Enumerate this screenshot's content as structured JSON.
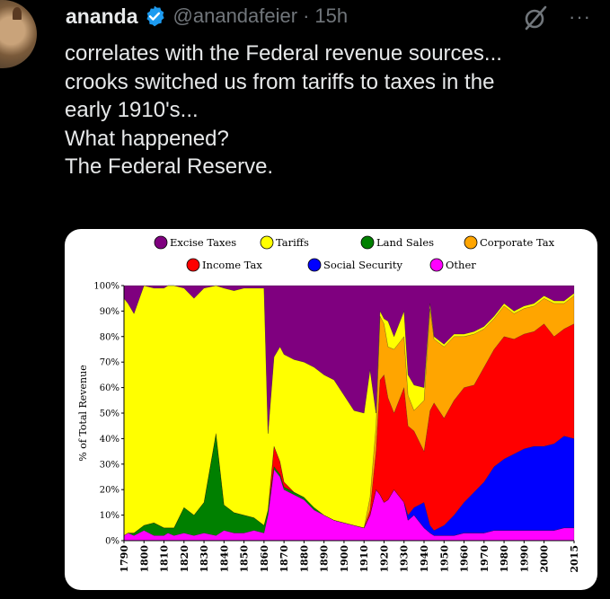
{
  "post": {
    "author_name": "ananda",
    "handle": "@anandafeier",
    "separator": "·",
    "time": "15h",
    "more": "···",
    "text_lines": [
      "correlates with the Federal revenue sources...",
      "crooks switched us from tariffs to taxes in the",
      "early 1910's...",
      "What happened?",
      "The Federal Reserve."
    ]
  },
  "icons": {
    "verified": "verified-badge-icon",
    "grok": "grok-icon",
    "more": "more-icon"
  },
  "colors": {
    "background": "#000000",
    "text": "#e7e9ea",
    "muted": "#71767b",
    "verified": "#1d9bf0"
  },
  "chart_data": {
    "type": "area",
    "stacked": true,
    "ylabel": "% of Total Revenue",
    "xlabel": "",
    "ylim": [
      0,
      100
    ],
    "xlim": [
      1790,
      2015
    ],
    "y_ticks": [
      "0%",
      "10%",
      "20%",
      "30%",
      "40%",
      "50%",
      "60%",
      "70%",
      "80%",
      "90%",
      "100%"
    ],
    "x_ticks": [
      "1790",
      "1800",
      "1810",
      "1820",
      "1830",
      "1840",
      "1850",
      "1860",
      "1870",
      "1880",
      "1890",
      "1900",
      "1910",
      "1920",
      "1930",
      "1940",
      "1950",
      "1960",
      "1970",
      "1980",
      "1990",
      "2000",
      "2015"
    ],
    "legend_placement": "top",
    "legend": [
      {
        "name": "Excise Taxes",
        "color": "#7f007f"
      },
      {
        "name": "Tariffs",
        "color": "#ffff00"
      },
      {
        "name": "Land Sales",
        "color": "#008000"
      },
      {
        "name": "Corporate Tax",
        "color": "#ffa500"
      },
      {
        "name": "Income Tax",
        "color": "#ff0000"
      },
      {
        "name": "Social Security",
        "color": "#0000ff"
      },
      {
        "name": "Other",
        "color": "#ff00ff"
      }
    ],
    "x": [
      1790,
      1792,
      1795,
      1800,
      1805,
      1810,
      1812,
      1815,
      1820,
      1825,
      1830,
      1836,
      1840,
      1845,
      1850,
      1855,
      1860,
      1862,
      1865,
      1868,
      1870,
      1875,
      1880,
      1885,
      1890,
      1895,
      1900,
      1905,
      1910,
      1913,
      1916,
      1918,
      1920,
      1922,
      1925,
      1930,
      1932,
      1935,
      1940,
      1943,
      1945,
      1950,
      1955,
      1960,
      1965,
      1970,
      1975,
      1980,
      1985,
      1990,
      1995,
      2000,
      2005,
      2010,
      2015
    ],
    "series": [
      {
        "name": "Other",
        "values": [
          2,
          3,
          2,
          4,
          2,
          2,
          3,
          2,
          3,
          2,
          3,
          2,
          4,
          3,
          3,
          4,
          3,
          10,
          28,
          25,
          20,
          18,
          16,
          12,
          10,
          8,
          7,
          6,
          5,
          10,
          20,
          18,
          15,
          16,
          20,
          15,
          8,
          10,
          5,
          3,
          2,
          2,
          2,
          3,
          3,
          3,
          4,
          4,
          4,
          4,
          4,
          4,
          4,
          5,
          5
        ]
      },
      {
        "name": "Land Sales",
        "values": [
          0,
          0,
          1,
          2,
          5,
          3,
          2,
          3,
          10,
          8,
          12,
          40,
          10,
          8,
          7,
          5,
          3,
          2,
          1,
          1,
          1,
          1,
          1,
          1,
          0,
          0,
          0,
          0,
          0,
          0,
          0,
          0,
          0,
          0,
          0,
          0,
          0,
          0,
          0,
          0,
          0,
          0,
          0,
          0,
          0,
          0,
          0,
          0,
          0,
          0,
          0,
          0,
          0,
          0,
          0
        ]
      },
      {
        "name": "Social Security",
        "values": [
          0,
          0,
          0,
          0,
          0,
          0,
          0,
          0,
          0,
          0,
          0,
          0,
          0,
          0,
          0,
          0,
          0,
          0,
          0,
          0,
          0,
          0,
          0,
          0,
          0,
          0,
          0,
          0,
          0,
          0,
          0,
          0,
          0,
          0,
          0,
          0,
          2,
          3,
          10,
          3,
          2,
          4,
          8,
          12,
          16,
          20,
          25,
          28,
          30,
          32,
          33,
          33,
          34,
          36,
          35
        ]
      },
      {
        "name": "Income Tax",
        "values": [
          0,
          0,
          0,
          0,
          0,
          0,
          0,
          0,
          0,
          0,
          0,
          0,
          0,
          0,
          0,
          0,
          0,
          0,
          8,
          5,
          2,
          0,
          0,
          0,
          0,
          0,
          0,
          0,
          0,
          2,
          15,
          45,
          50,
          40,
          30,
          45,
          35,
          30,
          20,
          45,
          50,
          42,
          45,
          45,
          42,
          45,
          46,
          48,
          45,
          45,
          45,
          48,
          42,
          42,
          45
        ]
      },
      {
        "name": "Corporate Tax",
        "values": [
          0,
          0,
          0,
          0,
          0,
          0,
          0,
          0,
          0,
          0,
          0,
          0,
          0,
          0,
          0,
          0,
          0,
          0,
          0,
          0,
          0,
          0,
          0,
          0,
          0,
          0,
          0,
          0,
          0,
          5,
          10,
          25,
          20,
          20,
          25,
          20,
          12,
          8,
          20,
          40,
          25,
          28,
          25,
          20,
          20,
          15,
          12,
          12,
          10,
          10,
          10,
          10,
          13,
          10,
          11
        ]
      },
      {
        "name": "Tariffs",
        "values": [
          93,
          90,
          86,
          94,
          92,
          94,
          95,
          95,
          86,
          85,
          84,
          58,
          85,
          87,
          89,
          90,
          93,
          30,
          35,
          45,
          50,
          52,
          53,
          55,
          55,
          55,
          50,
          45,
          45,
          50,
          5,
          2,
          2,
          10,
          5,
          10,
          8,
          10,
          5,
          2,
          1,
          1,
          1,
          1,
          1,
          1,
          1,
          1,
          1,
          1,
          1,
          1,
          1,
          1,
          1
        ]
      },
      {
        "name": "Excise Taxes",
        "values": [
          5,
          7,
          11,
          0,
          1,
          1,
          0,
          0,
          1,
          5,
          1,
          0,
          1,
          2,
          1,
          1,
          1,
          58,
          28,
          24,
          27,
          29,
          30,
          32,
          35,
          37,
          43,
          49,
          50,
          33,
          50,
          10,
          13,
          14,
          20,
          10,
          35,
          39,
          40,
          7,
          20,
          23,
          19,
          19,
          18,
          16,
          12,
          7,
          10,
          8,
          7,
          4,
          6,
          6,
          3
        ]
      }
    ]
  }
}
